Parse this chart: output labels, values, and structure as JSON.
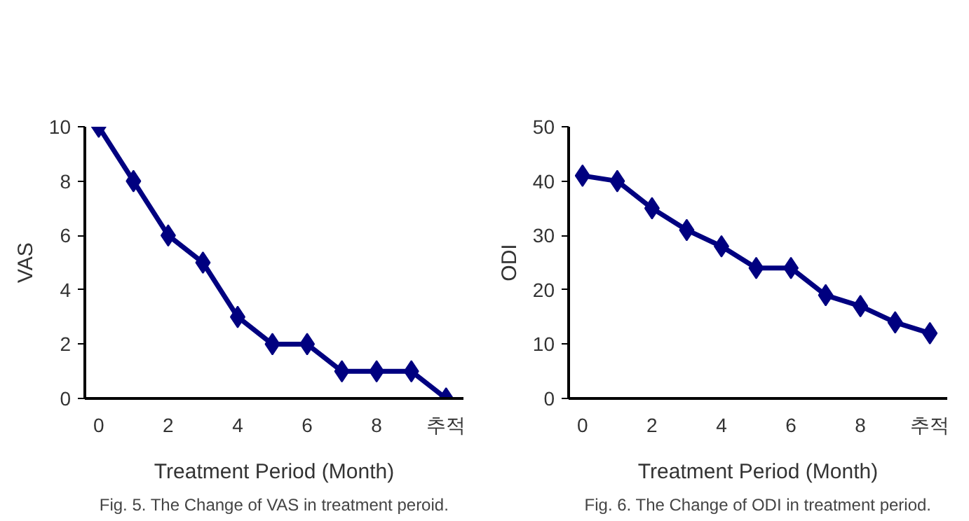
{
  "chart_data": [
    {
      "type": "line",
      "categories": [
        "0",
        null,
        "2",
        null,
        "4",
        null,
        "6",
        null,
        "8",
        null,
        "추적"
      ],
      "xlabel": "Treatment Period (Month)",
      "ylabel": "VAS",
      "ylim": [
        0,
        10
      ],
      "yticks": [
        0,
        2,
        4,
        6,
        8,
        10
      ],
      "marker": "diamond",
      "grid": false,
      "series": [
        {
          "color": "#000080",
          "values": [
            10,
            8,
            6,
            5,
            3,
            2,
            2,
            1,
            1,
            1,
            0
          ]
        }
      ],
      "annotations": [
        "Fig. 5. The Change of VAS in treatment peroid."
      ]
    },
    {
      "type": "line",
      "categories": [
        "0",
        null,
        "2",
        null,
        "4",
        null,
        "6",
        null,
        "8",
        null,
        "추적"
      ],
      "xlabel": "Treatment Period (Month)",
      "ylabel": "ODI",
      "ylim": [
        0,
        50
      ],
      "yticks": [
        0,
        10,
        20,
        30,
        40,
        50
      ],
      "marker": "diamond",
      "grid": false,
      "series": [
        {
          "color": "#000080",
          "values": [
            41,
            40,
            35,
            31,
            28,
            24,
            24,
            19,
            17,
            14,
            12
          ]
        }
      ],
      "annotations": [
        "Fig. 6. The Change of ODI in treatment period."
      ]
    }
  ]
}
